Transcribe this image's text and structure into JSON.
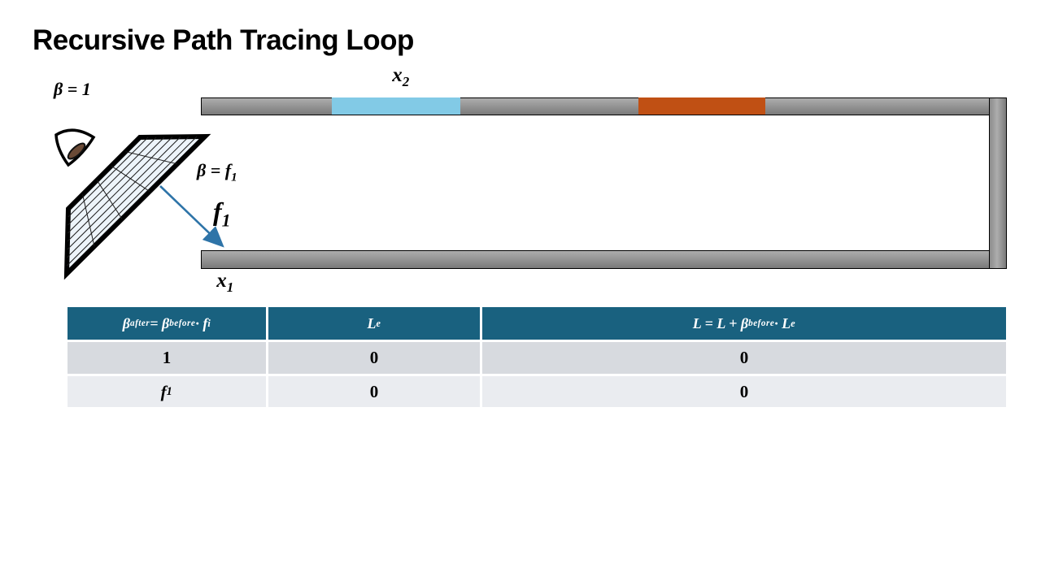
{
  "slide": {
    "title": "Recursive Path Tracing Loop"
  },
  "colors": {
    "title_ink": "#000000",
    "wall_top": "#ADADAD",
    "wall_bottom": "#7A7A7A",
    "wall_edge": "#000000",
    "patch_blue": "#82CAE6",
    "patch_orange": "#C05014",
    "arrow_blue": "#2E74A8",
    "grid_fill": "#EDF4FA",
    "table_header_bg": "#19617F",
    "table_header_ink": "#FFFFFF",
    "table_row_odd_bg": "#D7DADF",
    "table_row_even_bg": "#EAECF0",
    "table_ink": "#000000"
  },
  "diagram": {
    "labels": {
      "beta_at_eye": [
        [
          "t",
          "β = 1"
        ]
      ],
      "x2": [
        [
          "t",
          "x"
        ],
        [
          "sub",
          "2"
        ]
      ],
      "beta_after_bounce": [
        [
          "t",
          "β = f"
        ],
        [
          "sub",
          "1"
        ]
      ],
      "f1": [
        [
          "t",
          "f"
        ],
        [
          "sub",
          "1"
        ]
      ],
      "x1": [
        [
          "t",
          "x"
        ],
        [
          "sub",
          "1"
        ]
      ]
    }
  },
  "table": {
    "headers": [
      [
        [
          "t",
          "β"
        ],
        [
          "sup",
          "after"
        ],
        [
          "t",
          " = β"
        ],
        [
          "sup",
          "before"
        ],
        [
          "t",
          " · f"
        ],
        [
          "sub",
          "i"
        ]
      ],
      [
        [
          "t",
          "L"
        ],
        [
          "sub",
          "e"
        ]
      ],
      [
        [
          "t",
          "L = L + β"
        ],
        [
          "sup",
          "before"
        ],
        [
          "t",
          " · L"
        ],
        [
          "sub",
          "e"
        ]
      ]
    ],
    "rows": [
      [
        [
          [
            "t",
            "1"
          ]
        ],
        [
          [
            "t",
            "0"
          ]
        ],
        [
          [
            "t",
            "0"
          ]
        ]
      ],
      [
        [
          [
            "t",
            "f"
          ],
          [
            "sub",
            "1"
          ]
        ],
        [
          [
            "t",
            "0"
          ]
        ],
        [
          [
            "t",
            "0"
          ]
        ]
      ]
    ]
  }
}
